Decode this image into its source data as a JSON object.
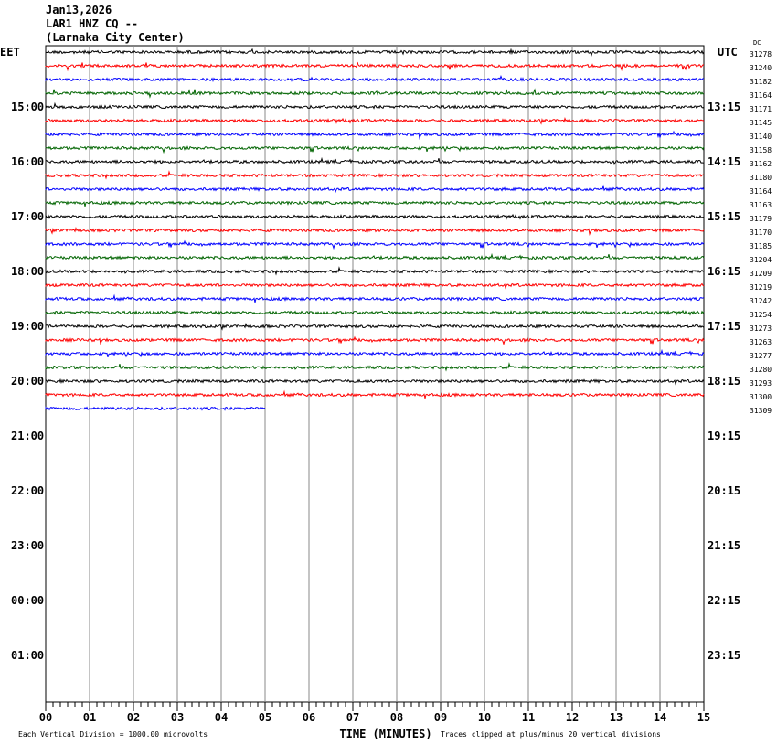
{
  "header": {
    "date": "Jan13,2026",
    "station": "LAR1 HNZ CQ --",
    "location": "(Larnaka City Center)"
  },
  "chart_data": {
    "type": "line",
    "left_timezone": "EET",
    "right_timezone": "UTC",
    "dc_label": "DC",
    "left_hour_labels": [
      "15:00",
      "16:00",
      "17:00",
      "18:00",
      "19:00",
      "20:00",
      "21:00",
      "22:00",
      "23:00",
      "00:00",
      "01:00"
    ],
    "right_hour_labels": [
      "13:15",
      "14:15",
      "15:15",
      "16:15",
      "17:15",
      "18:15",
      "19:15",
      "20:15",
      "21:15",
      "22:15",
      "23:15"
    ],
    "x_tick_labels": [
      "00",
      "01",
      "02",
      "03",
      "04",
      "05",
      "06",
      "07",
      "08",
      "09",
      "10",
      "11",
      "12",
      "13",
      "14",
      "15"
    ],
    "xlabel": "TIME (MINUTES)",
    "xlim": [
      0,
      15
    ],
    "rows_per_hour": 4,
    "total_rows": 48,
    "trace_colors": [
      "#000000",
      "#ff0000",
      "#0000ff",
      "#006400"
    ],
    "dc_offsets": [
      31278,
      31240,
      31182,
      31164,
      31171,
      31145,
      31140,
      31158,
      31162,
      31180,
      31164,
      31163,
      31179,
      31170,
      31185,
      31204,
      31209,
      31219,
      31242,
      31254,
      31273,
      31263,
      31277,
      31280,
      31293,
      31300,
      31309
    ],
    "last_row_end_minute": 5,
    "scale_note": "Each Vertical Division = 1000.00 microvolts",
    "clip_note": "Traces clipped at plus/minus 20 vertical divisions"
  }
}
